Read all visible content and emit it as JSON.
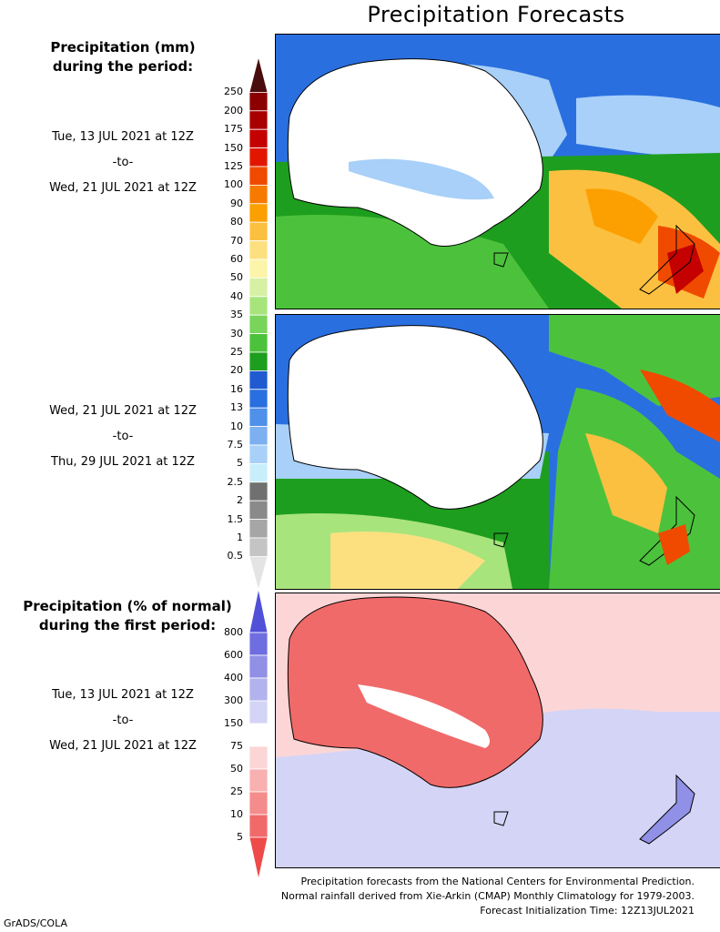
{
  "title": "Precipitation Forecasts",
  "panel1": {
    "header": [
      "Precipitation (mm)",
      "during the period:"
    ],
    "start": "Tue, 13 JUL 2021 at 12Z",
    "sep": "-to-",
    "end": "Wed, 21 JUL 2021 at 12Z"
  },
  "panel2": {
    "start": "Wed, 21 JUL 2021 at 12Z",
    "sep": "-to-",
    "end": "Thu, 29 JUL 2021 at 12Z"
  },
  "panel3": {
    "header": [
      "Precipitation (% of normal)",
      "during the first period:"
    ],
    "start": "Tue, 13 JUL 2021 at 12Z",
    "sep": "-to-",
    "end": "Wed, 21 JUL 2021 at 12Z"
  },
  "mm_scale": {
    "labels": [
      "250",
      "200",
      "175",
      "150",
      "125",
      "100",
      "90",
      "80",
      "70",
      "60",
      "50",
      "40",
      "35",
      "30",
      "25",
      "20",
      "16",
      "13",
      "10",
      "7.5",
      "5",
      "2.5",
      "2",
      "1.5",
      "1",
      "0.5"
    ],
    "colors": [
      "#4a0d0d",
      "#8b0000",
      "#a80000",
      "#c40000",
      "#e21600",
      "#f04a00",
      "#f77a00",
      "#fba000",
      "#fcc040",
      "#fce080",
      "#fcf4a8",
      "#d6f0a4",
      "#a8e47c",
      "#78d45a",
      "#4cc23c",
      "#1e9e1e",
      "#1f5ad0",
      "#2a6fe0",
      "#4f90ea",
      "#7cb0f0",
      "#a8d0f8",
      "#c8eefc",
      "#707070",
      "#8a8a8a",
      "#a6a6a6",
      "#c4c4c4",
      "#e4e4e4"
    ]
  },
  "pct_scale": {
    "labels": [
      "800",
      "600",
      "400",
      "300",
      "150",
      "75",
      "50",
      "25",
      "10",
      "5"
    ],
    "colors": [
      "#5050d8",
      "#6e6ee0",
      "#9090e6",
      "#b2b2ee",
      "#d4d4f6",
      "#ffffff",
      "#fcd6d6",
      "#f8b0b0",
      "#f48c8c",
      "#f06a6a",
      "#ee4a4a"
    ]
  },
  "credits": [
    "Precipitation forecasts from the National Centers for Environmental Prediction.",
    "Normal rainfall derived from Xie-Arkin (CMAP) Monthly Climatology for 1979-2003.",
    "Forecast Initialization Time: 12Z13JUL2021"
  ],
  "software": "GrADS/COLA"
}
